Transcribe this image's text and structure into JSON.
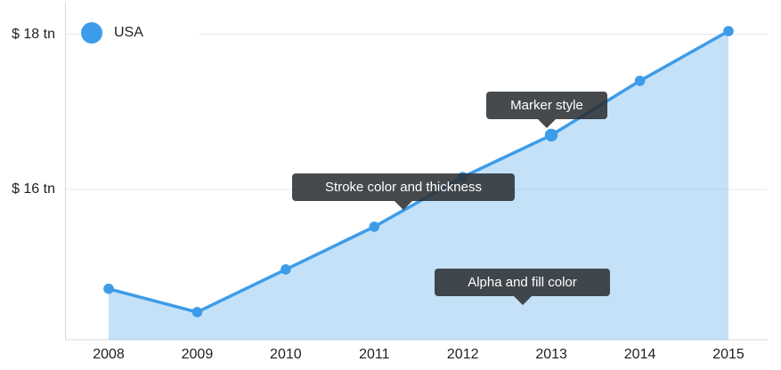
{
  "colors": {
    "accent_blue": "#3D9CE9",
    "area_fill": "#C9E3F8",
    "gridline": "#E9E9E9",
    "axis_line": "#D9D9D9",
    "label_text": "#212121",
    "tooltip_bg": "#2B2F33",
    "tooltip_text": "#FFFFFF"
  },
  "chart_data": {
    "type": "area",
    "title": "",
    "x": [
      "2008",
      "2009",
      "2010",
      "2011",
      "2012",
      "2013",
      "2014",
      "2015"
    ],
    "series": [
      {
        "name": "USA",
        "values": [
          14.72,
          14.42,
          14.97,
          15.52,
          16.16,
          16.7,
          17.4,
          18.04
        ]
      }
    ],
    "y_unit": "trillion USD",
    "y_ticks": [
      {
        "value": 18,
        "label": "$ 18 tn"
      },
      {
        "value": 16,
        "label": "$ 16 tn"
      }
    ],
    "ylim": [
      14.06,
      18.41
    ],
    "grid": "horizontal",
    "legend_position": "top-left-inside",
    "line_color": "#3D9CE9",
    "line_width": 3.5,
    "fill_color": "#3D9CE9",
    "fill_alpha": 0.3,
    "emphasized_point": "2013",
    "annotations": [
      {
        "text": "Marker style",
        "target": "2013 data point marker"
      },
      {
        "text": "Stroke color and thickness",
        "target": "series line"
      },
      {
        "text": "Alpha and fill color",
        "target": "area fill"
      }
    ]
  }
}
